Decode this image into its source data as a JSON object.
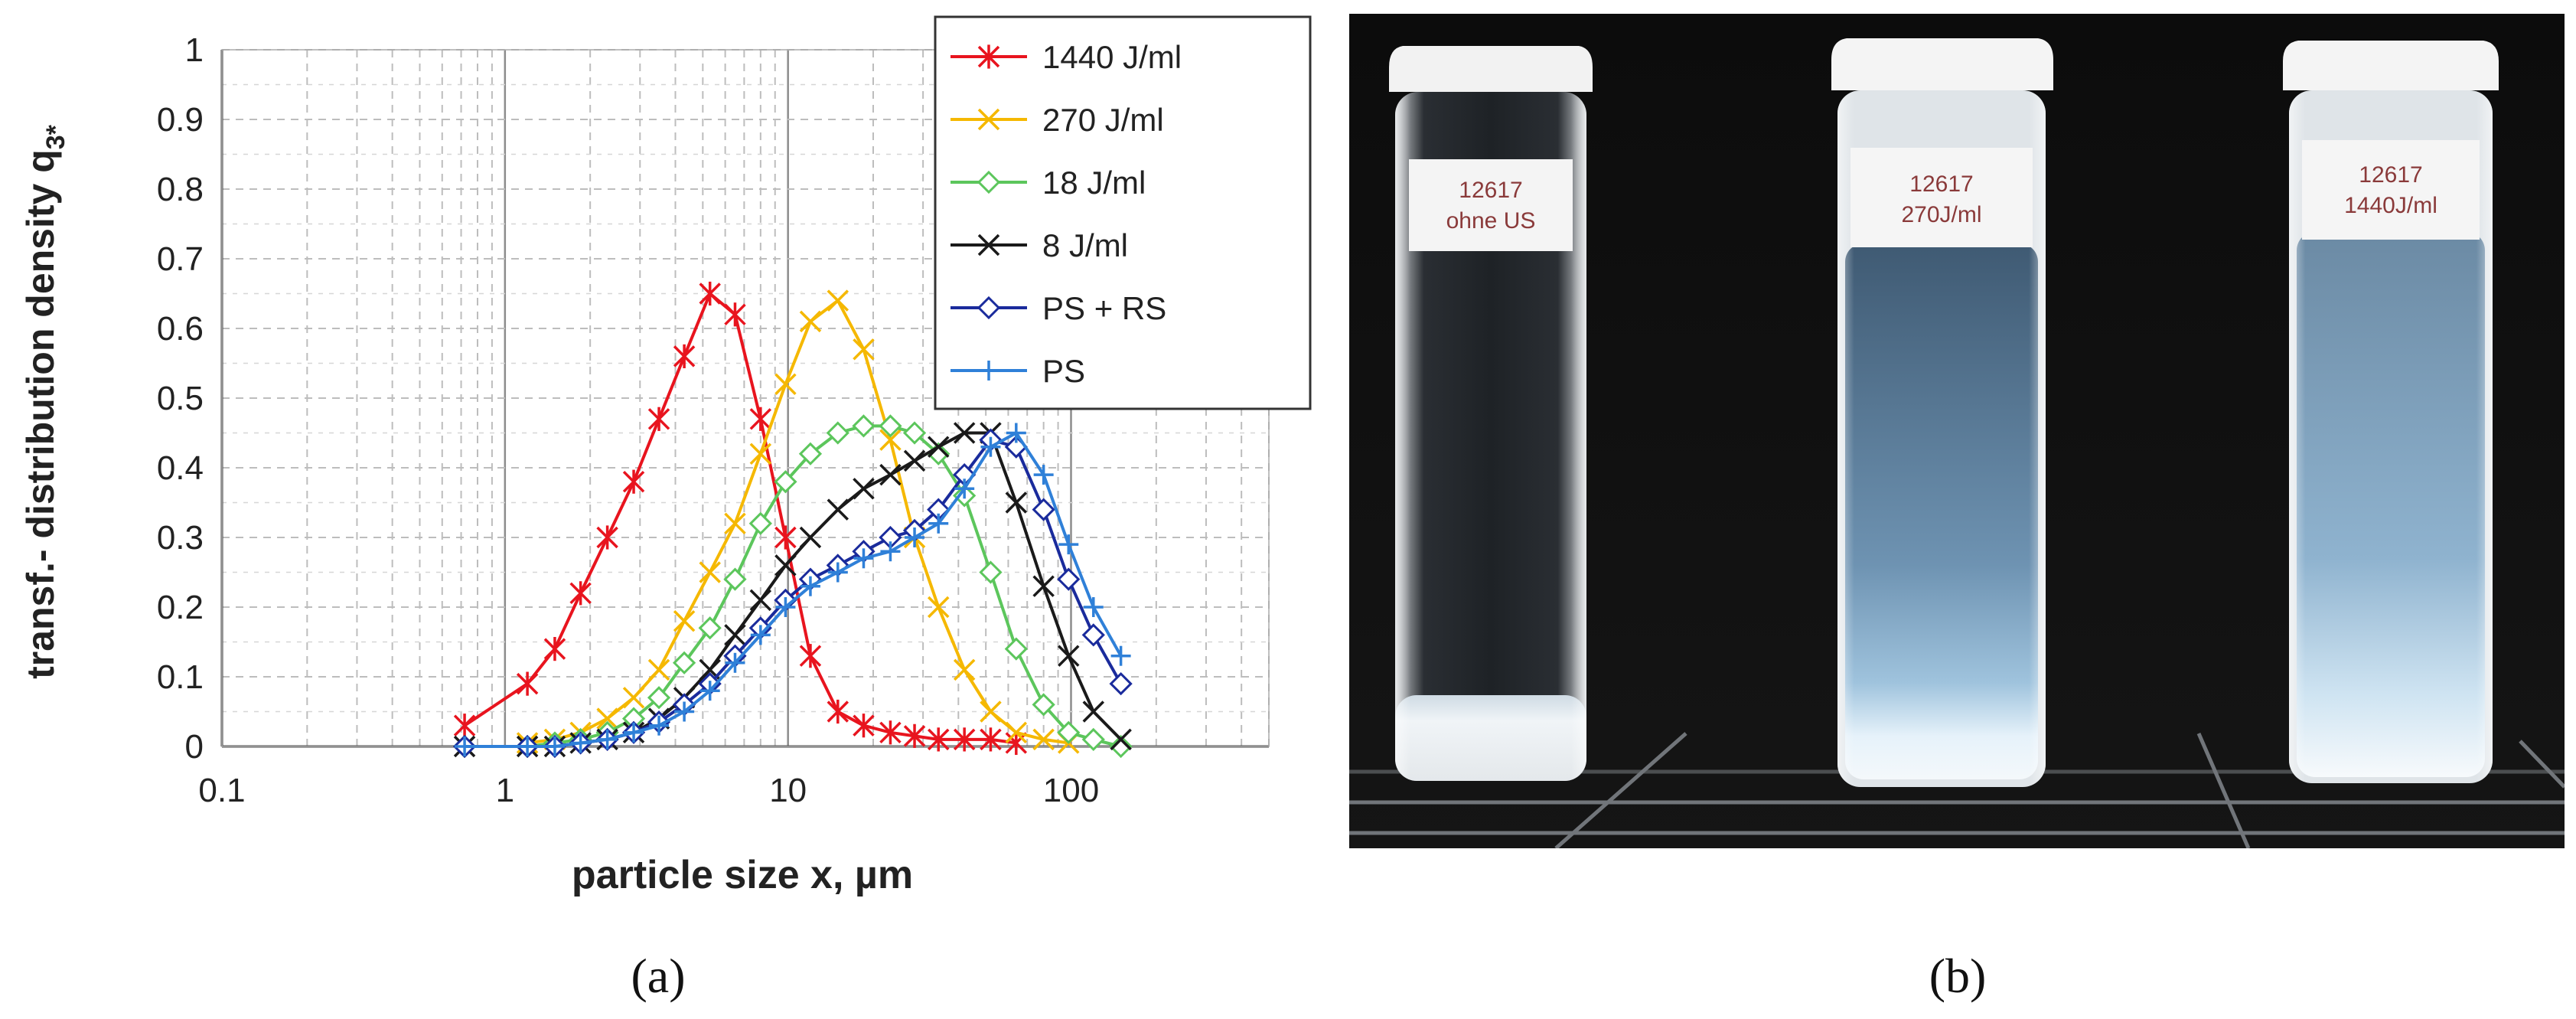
{
  "chart_data": {
    "type": "line",
    "xscale": "log",
    "xlabel": "particle size x, µm",
    "ylabel": "transf.- distribution density q",
    "ylabel_sub": "3*",
    "xlim": [
      0.1,
      500
    ],
    "ylim": [
      0,
      1
    ],
    "xticks": [
      0.1,
      1,
      10,
      100
    ],
    "xtick_labels": [
      "0.1",
      "1",
      "10",
      "100"
    ],
    "yticks": [
      0,
      0.1,
      0.2,
      0.3,
      0.4,
      0.5,
      0.6,
      0.7,
      0.8,
      0.9,
      1
    ],
    "ytick_labels": [
      "0",
      "0.1",
      "0.2",
      "0.3",
      "0.4",
      "0.5",
      "0.6",
      "0.7",
      "0.8",
      "0.9",
      "1"
    ],
    "grid": true,
    "legend_position": "top-right",
    "series": [
      {
        "name": "1440 J/ml",
        "color": "#e8141e",
        "marker": "asterisk",
        "x": [
          0.72,
          1.2,
          1.5,
          1.85,
          2.3,
          2.85,
          3.5,
          4.3,
          5.3,
          6.5,
          8.0,
          9.8,
          12,
          15,
          18.5,
          23,
          28,
          34,
          42,
          52,
          64
        ],
        "y": [
          0.03,
          0.09,
          0.14,
          0.22,
          0.3,
          0.38,
          0.47,
          0.56,
          0.65,
          0.62,
          0.47,
          0.3,
          0.13,
          0.05,
          0.03,
          0.02,
          0.015,
          0.01,
          0.01,
          0.01,
          0.005
        ]
      },
      {
        "name": "270 J/ml",
        "color": "#f5b800",
        "marker": "x",
        "x": [
          1.2,
          1.5,
          1.85,
          2.3,
          2.85,
          3.5,
          4.3,
          5.3,
          6.5,
          8.0,
          9.8,
          12,
          15,
          18.5,
          23,
          28,
          34,
          42,
          52,
          64,
          80,
          98
        ],
        "y": [
          0.005,
          0.01,
          0.02,
          0.04,
          0.07,
          0.11,
          0.18,
          0.25,
          0.32,
          0.42,
          0.52,
          0.61,
          0.64,
          0.57,
          0.44,
          0.3,
          0.2,
          0.11,
          0.05,
          0.02,
          0.01,
          0.005
        ]
      },
      {
        "name": "18 J/ml",
        "color": "#5cc65c",
        "marker": "diamond",
        "x": [
          0.72,
          1.2,
          1.5,
          1.85,
          2.3,
          2.85,
          3.5,
          4.3,
          5.3,
          6.5,
          8.0,
          9.8,
          12,
          15,
          18.5,
          23,
          28,
          34,
          42,
          52,
          64,
          80,
          98,
          120,
          150
        ],
        "y": [
          0,
          0,
          0.005,
          0.01,
          0.02,
          0.04,
          0.07,
          0.12,
          0.17,
          0.24,
          0.32,
          0.38,
          0.42,
          0.45,
          0.46,
          0.46,
          0.45,
          0.42,
          0.36,
          0.25,
          0.14,
          0.06,
          0.02,
          0.01,
          0
        ]
      },
      {
        "name": "8 J/ml",
        "color": "#1a1a1a",
        "marker": "x",
        "x": [
          0.72,
          1.2,
          1.5,
          1.85,
          2.3,
          2.85,
          3.5,
          4.3,
          5.3,
          6.5,
          8.0,
          9.8,
          12,
          15,
          18.5,
          23,
          28,
          34,
          42,
          52,
          64,
          80,
          98,
          120,
          150
        ],
        "y": [
          0,
          0,
          0,
          0.005,
          0.01,
          0.02,
          0.04,
          0.07,
          0.11,
          0.16,
          0.21,
          0.26,
          0.3,
          0.34,
          0.37,
          0.39,
          0.41,
          0.43,
          0.45,
          0.45,
          0.35,
          0.23,
          0.13,
          0.05,
          0.01
        ]
      },
      {
        "name": "PS + RS",
        "color": "#1a2b9c",
        "marker": "diamond",
        "x": [
          0.72,
          1.2,
          1.5,
          1.85,
          2.3,
          2.85,
          3.5,
          4.3,
          5.3,
          6.5,
          8.0,
          9.8,
          12,
          15,
          18.5,
          23,
          28,
          34,
          42,
          52,
          64,
          80,
          98,
          120,
          150
        ],
        "y": [
          0,
          0,
          0,
          0.005,
          0.01,
          0.02,
          0.035,
          0.06,
          0.09,
          0.13,
          0.17,
          0.21,
          0.24,
          0.26,
          0.28,
          0.3,
          0.31,
          0.34,
          0.39,
          0.44,
          0.43,
          0.34,
          0.24,
          0.16,
          0.09
        ]
      },
      {
        "name": "PS",
        "color": "#2f80d8",
        "marker": "plus",
        "x": [
          0.72,
          1.2,
          1.5,
          1.85,
          2.3,
          2.85,
          3.5,
          4.3,
          5.3,
          6.5,
          8.0,
          9.8,
          12,
          15,
          18.5,
          23,
          28,
          34,
          42,
          52,
          64,
          80,
          98,
          120,
          150
        ],
        "y": [
          0,
          0,
          0,
          0.005,
          0.01,
          0.02,
          0.03,
          0.05,
          0.08,
          0.12,
          0.16,
          0.2,
          0.23,
          0.25,
          0.27,
          0.28,
          0.3,
          0.32,
          0.37,
          0.43,
          0.45,
          0.39,
          0.29,
          0.2,
          0.13
        ]
      }
    ]
  },
  "photo": {
    "vials": [
      {
        "label_line1": "12617",
        "label_line2": "ohne US"
      },
      {
        "label_line1": "12617",
        "label_line2": "270J/ml"
      },
      {
        "label_line1": "12617",
        "label_line2": "1440J/ml"
      }
    ]
  },
  "captions": {
    "a": "(a)",
    "b": "(b)"
  }
}
